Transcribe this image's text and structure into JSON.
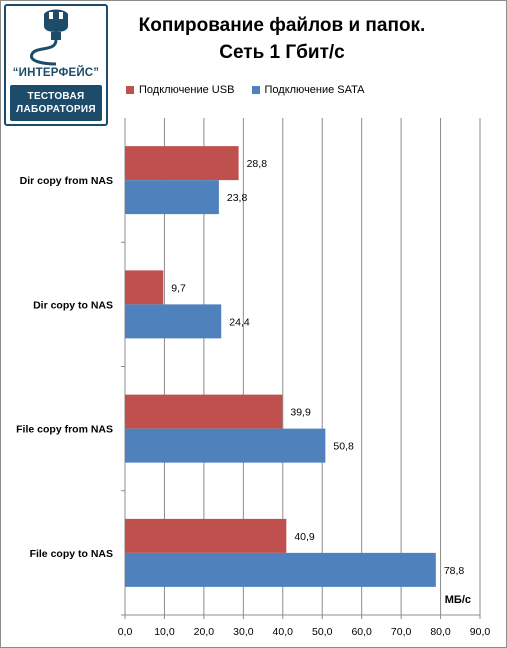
{
  "logo": {
    "name": "“ИНТЕРФЕЙС”",
    "line1": "ТЕСТОВАЯ",
    "line2": "ЛАБОРАТОРИЯ"
  },
  "colors": {
    "usb": "#c0504d",
    "sata": "#4f81bd",
    "logo": "#1d4c6b"
  },
  "chart_data": {
    "type": "bar",
    "orientation": "horizontal",
    "title_line1": "Копирование файлов и папок.",
    "title_line2": "Сеть 1 Гбит/с",
    "unit_label": "МБ/с",
    "categories": [
      "Dir copy from NAS",
      "Dir copy to NAS",
      "File copy from NAS",
      "File copy to NAS"
    ],
    "series": [
      {
        "name": "Подключение USB",
        "values": [
          28.8,
          9.7,
          39.9,
          40.9
        ],
        "labels": [
          "28,8",
          "9,7",
          "39,9",
          "40,9"
        ]
      },
      {
        "name": "Подключение SATA",
        "values": [
          23.8,
          24.4,
          50.8,
          78.8
        ],
        "labels": [
          "23,8",
          "24,4",
          "50,8",
          "78,8"
        ]
      }
    ],
    "xlim": [
      0,
      90
    ],
    "ticks": [
      "0,0",
      "10,0",
      "20,0",
      "30,0",
      "40,0",
      "50,0",
      "60,0",
      "70,0",
      "80,0",
      "90,0"
    ],
    "grid": true,
    "legend_position": "top"
  }
}
